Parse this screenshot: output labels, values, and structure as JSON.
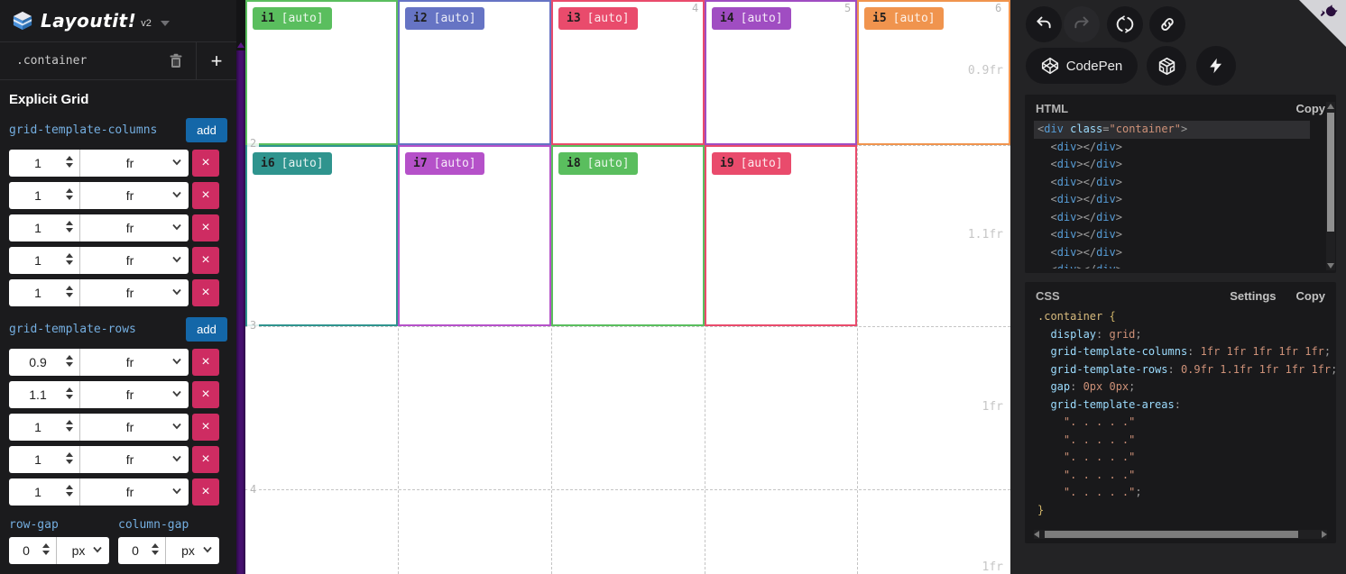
{
  "app": {
    "title": "Layoutit!",
    "version": "v2"
  },
  "sidebar": {
    "selector": ".container",
    "section_title": "Explicit Grid",
    "columns_label": "grid-template-columns",
    "rows_label": "grid-template-rows",
    "add_label": "add",
    "remove_label": "×",
    "columns": [
      {
        "value": "1",
        "unit": "fr"
      },
      {
        "value": "1",
        "unit": "fr"
      },
      {
        "value": "1",
        "unit": "fr"
      },
      {
        "value": "1",
        "unit": "fr"
      },
      {
        "value": "1",
        "unit": "fr"
      }
    ],
    "rows": [
      {
        "value": "0.9",
        "unit": "fr"
      },
      {
        "value": "1.1",
        "unit": "fr"
      },
      {
        "value": "1",
        "unit": "fr"
      },
      {
        "value": "1",
        "unit": "fr"
      },
      {
        "value": "1",
        "unit": "fr"
      }
    ],
    "row_gap_label": "row-gap",
    "column_gap_label": "column-gap",
    "row_gap": {
      "value": "0",
      "unit": "px"
    },
    "column_gap": {
      "value": "0",
      "unit": "px"
    }
  },
  "canvas": {
    "items": [
      {
        "name": "i1",
        "badge": "[auto]",
        "color": "#5abe5e"
      },
      {
        "name": "i2",
        "badge": "[auto]",
        "color": "#6674c4"
      },
      {
        "name": "i3",
        "badge": "[auto]",
        "color": "#e94b6c"
      },
      {
        "name": "i4",
        "badge": "[auto]",
        "color": "#a04dc2"
      },
      {
        "name": "i5",
        "badge": "[auto]",
        "color": "#f0944e"
      },
      {
        "name": "i6",
        "badge": "[auto]",
        "color": "#2f948e"
      },
      {
        "name": "i7",
        "badge": "[auto]",
        "color": "#b551c9"
      },
      {
        "name": "i8",
        "badge": "[auto]",
        "color": "#5abe5e"
      },
      {
        "name": "i9",
        "badge": "[auto]",
        "color": "#e94b6c"
      }
    ],
    "col_numbers": [
      "4",
      "5",
      "6"
    ],
    "row_numbers": [
      "2",
      "3",
      "4"
    ],
    "track_labels": [
      "0.9fr",
      "1.1fr",
      "1fr",
      "1fr"
    ]
  },
  "toolbar": {
    "codepen_label": "CodePen"
  },
  "html_panel": {
    "title": "HTML",
    "copy_label": "Copy",
    "code": [
      {
        "hl": true,
        "toks": [
          [
            "punc",
            "<"
          ],
          [
            "tag",
            "div"
          ],
          [
            "plain",
            " "
          ],
          [
            "attr",
            "class"
          ],
          [
            "punc",
            "="
          ],
          [
            "str",
            "\"container\""
          ],
          [
            "punc",
            ">"
          ]
        ]
      },
      {
        "hl": false,
        "toks": [
          [
            "punc",
            "  <"
          ],
          [
            "tag",
            "div"
          ],
          [
            "punc",
            "></"
          ],
          [
            "tag",
            "div"
          ],
          [
            "punc",
            ">"
          ]
        ]
      },
      {
        "hl": false,
        "toks": [
          [
            "punc",
            "  <"
          ],
          [
            "tag",
            "div"
          ],
          [
            "punc",
            "></"
          ],
          [
            "tag",
            "div"
          ],
          [
            "punc",
            ">"
          ]
        ]
      },
      {
        "hl": false,
        "toks": [
          [
            "punc",
            "  <"
          ],
          [
            "tag",
            "div"
          ],
          [
            "punc",
            "></"
          ],
          [
            "tag",
            "div"
          ],
          [
            "punc",
            ">"
          ]
        ]
      },
      {
        "hl": false,
        "toks": [
          [
            "punc",
            "  <"
          ],
          [
            "tag",
            "div"
          ],
          [
            "punc",
            "></"
          ],
          [
            "tag",
            "div"
          ],
          [
            "punc",
            ">"
          ]
        ]
      },
      {
        "hl": false,
        "toks": [
          [
            "punc",
            "  <"
          ],
          [
            "tag",
            "div"
          ],
          [
            "punc",
            "></"
          ],
          [
            "tag",
            "div"
          ],
          [
            "punc",
            ">"
          ]
        ]
      },
      {
        "hl": false,
        "toks": [
          [
            "punc",
            "  <"
          ],
          [
            "tag",
            "div"
          ],
          [
            "punc",
            "></"
          ],
          [
            "tag",
            "div"
          ],
          [
            "punc",
            ">"
          ]
        ]
      },
      {
        "hl": false,
        "toks": [
          [
            "punc",
            "  <"
          ],
          [
            "tag",
            "div"
          ],
          [
            "punc",
            "></"
          ],
          [
            "tag",
            "div"
          ],
          [
            "punc",
            ">"
          ]
        ]
      },
      {
        "hl": false,
        "toks": [
          [
            "punc",
            "  <"
          ],
          [
            "tag",
            "div"
          ],
          [
            "punc",
            "></"
          ],
          [
            "tag",
            "div"
          ],
          [
            "punc",
            ">"
          ]
        ]
      }
    ]
  },
  "css_panel": {
    "title": "CSS",
    "settings_label": "Settings",
    "copy_label": "Copy",
    "code": [
      {
        "hl": false,
        "toks": [
          [
            "sel",
            ".container"
          ],
          [
            "plain",
            " "
          ],
          [
            "brace",
            "{"
          ]
        ]
      },
      {
        "hl": false,
        "toks": [
          [
            "prop",
            "  display"
          ],
          [
            "punc",
            ":"
          ],
          [
            "val",
            " grid"
          ],
          [
            "punc",
            ";"
          ]
        ]
      },
      {
        "hl": false,
        "toks": [
          [
            "prop",
            "  grid-template-columns"
          ],
          [
            "punc",
            ":"
          ],
          [
            "val",
            " 1fr 1fr 1fr 1fr 1fr"
          ],
          [
            "punc",
            ";"
          ]
        ]
      },
      {
        "hl": false,
        "toks": [
          [
            "prop",
            "  grid-template-rows"
          ],
          [
            "punc",
            ":"
          ],
          [
            "val",
            " 0.9fr 1.1fr 1fr 1fr 1fr"
          ],
          [
            "punc",
            ";"
          ]
        ]
      },
      {
        "hl": false,
        "toks": [
          [
            "prop",
            "  gap"
          ],
          [
            "punc",
            ":"
          ],
          [
            "val",
            " 0px 0px"
          ],
          [
            "punc",
            ";"
          ]
        ]
      },
      {
        "hl": false,
        "toks": [
          [
            "prop",
            "  grid-template-areas"
          ],
          [
            "punc",
            ":"
          ]
        ]
      },
      {
        "hl": false,
        "toks": [
          [
            "str",
            "    \". . . . .\""
          ]
        ]
      },
      {
        "hl": false,
        "toks": [
          [
            "str",
            "    \". . . . .\""
          ]
        ]
      },
      {
        "hl": false,
        "toks": [
          [
            "str",
            "    \". . . . .\""
          ]
        ]
      },
      {
        "hl": false,
        "toks": [
          [
            "str",
            "    \". . . . .\""
          ]
        ]
      },
      {
        "hl": false,
        "toks": [
          [
            "str",
            "    \". . . . .\""
          ],
          [
            "punc",
            ";"
          ]
        ]
      },
      {
        "hl": false,
        "toks": [
          [
            "brace",
            "}"
          ]
        ]
      }
    ]
  }
}
